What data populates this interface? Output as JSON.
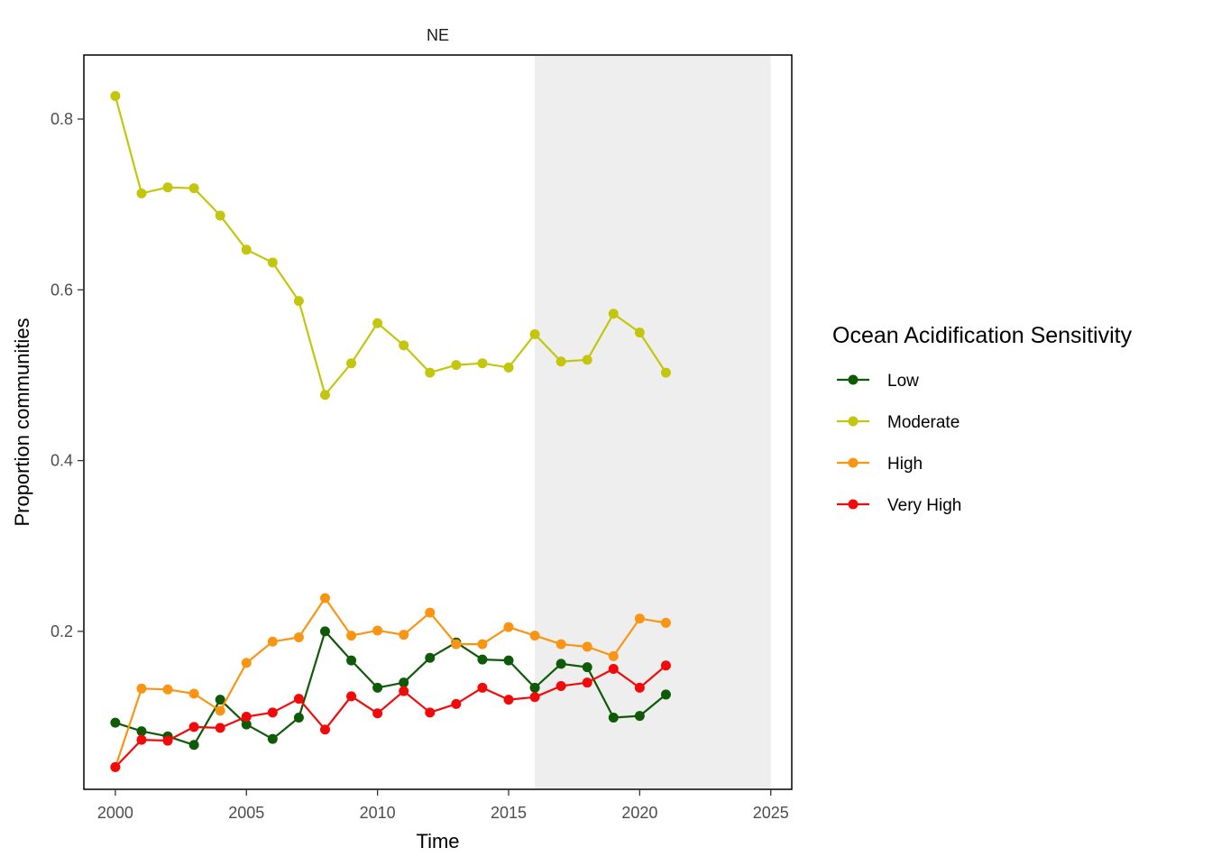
{
  "chart_data": {
    "type": "line",
    "title": "NE",
    "xlabel": "Time",
    "ylabel": "Proportion communities",
    "xlim": [
      1998.8,
      2025.8
    ],
    "ylim": [
      0.015,
      0.875
    ],
    "xticks": [
      2000,
      2005,
      2010,
      2015,
      2020,
      2025
    ],
    "xtick_labels": [
      "2000",
      "2005",
      "2010",
      "2015",
      "2020",
      "2025"
    ],
    "yticks": [
      0.2,
      0.4,
      0.6,
      0.8
    ],
    "ytick_labels": [
      "0.2",
      "0.4",
      "0.6",
      "0.8"
    ],
    "shaded_region": {
      "x_start": 2016,
      "x_end": 2025,
      "color": "#eeeeee"
    },
    "grid": false,
    "legend": {
      "title": "Ocean Acidification Sensitivity",
      "position": "right"
    },
    "x": [
      2000,
      2001,
      2002,
      2003,
      2004,
      2005,
      2006,
      2007,
      2008,
      2009,
      2010,
      2011,
      2012,
      2013,
      2014,
      2015,
      2016,
      2017,
      2018,
      2019,
      2020,
      2021
    ],
    "series": [
      {
        "name": "Low",
        "color": "#0f5a06",
        "values": [
          0.093,
          0.083,
          0.077,
          0.067,
          0.12,
          0.091,
          0.074,
          0.099,
          0.2,
          0.166,
          0.134,
          0.14,
          0.169,
          0.187,
          0.167,
          0.166,
          0.134,
          0.162,
          0.158,
          0.099,
          0.101,
          0.126
        ]
      },
      {
        "name": "Moderate",
        "color": "#c3c60c",
        "values": [
          0.827,
          0.713,
          0.72,
          0.719,
          0.687,
          0.647,
          0.632,
          0.587,
          0.477,
          0.514,
          0.561,
          0.535,
          0.503,
          0.512,
          0.514,
          0.509,
          0.548,
          0.516,
          0.518,
          0.572,
          0.55,
          0.503
        ]
      },
      {
        "name": "High",
        "color": "#fa9514",
        "values": [
          0.041,
          0.133,
          0.132,
          0.127,
          0.107,
          0.163,
          0.188,
          0.193,
          0.239,
          0.195,
          0.201,
          0.196,
          0.222,
          0.185,
          0.185,
          0.205,
          0.195,
          0.185,
          0.182,
          0.171,
          0.215,
          0.21
        ]
      },
      {
        "name": "Very High",
        "color": "#f20a0a",
        "values": [
          0.041,
          0.073,
          0.072,
          0.088,
          0.087,
          0.1,
          0.105,
          0.121,
          0.085,
          0.124,
          0.104,
          0.13,
          0.105,
          0.115,
          0.134,
          0.12,
          0.123,
          0.136,
          0.14,
          0.156,
          0.134,
          0.16
        ]
      }
    ]
  }
}
